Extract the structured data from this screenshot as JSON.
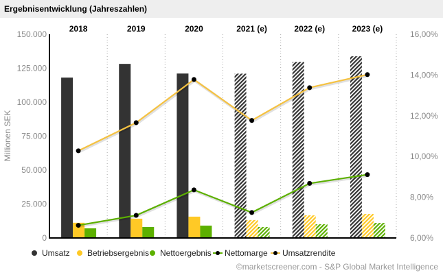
{
  "header": {
    "title": "Ergebnisentwicklung (Jahreszahlen)"
  },
  "footer": {
    "source": "©marketscreener.com - S&P Global Market Intelligence"
  },
  "chart_data": {
    "type": "bar",
    "title": "Ergebnisentwicklung (Jahreszahlen)",
    "categories": [
      "2018",
      "2019",
      "2020",
      "2021 (e)",
      "2022 (e)",
      "2023 (e)"
    ],
    "estimated": [
      false,
      false,
      false,
      true,
      true,
      true
    ],
    "ylabel": "Millionen SEK",
    "ylim": [
      0,
      150000
    ],
    "yticks": [
      "0",
      "25.000",
      "50.000",
      "75.000",
      "100.000",
      "125.000",
      "150.000"
    ],
    "y2lim": [
      6,
      16
    ],
    "y2ticks": [
      "6,00%",
      "8,00%",
      "10,00%",
      "12,00%",
      "14,00%",
      "16,00%"
    ],
    "grid": "vertical dotted separators",
    "legend_position": "bottom",
    "series": [
      {
        "name": "Umsatz",
        "type": "bar",
        "axis": "left",
        "color": "#333333",
        "values": [
          118100,
          128200,
          121100,
          121000,
          129700,
          133800
        ]
      },
      {
        "name": "Betriebsergebnis",
        "type": "bar",
        "axis": "left",
        "color": "#ffc926",
        "values": [
          11200,
          14200,
          15700,
          13200,
          16700,
          17700
        ]
      },
      {
        "name": "Nettoergebnis",
        "type": "bar",
        "axis": "left",
        "color": "#5cb000",
        "values": [
          7100,
          8100,
          9100,
          8100,
          10100,
          11100
        ]
      },
      {
        "name": "Nettomarge",
        "type": "line",
        "axis": "right",
        "color": "#5cb000",
        "values": [
          6.62,
          7.11,
          8.36,
          7.25,
          8.68,
          9.11
        ]
      },
      {
        "name": "Umsatzrendite",
        "type": "line",
        "axis": "right",
        "color": "#f5c242",
        "values": [
          10.28,
          11.66,
          13.78,
          11.77,
          13.38,
          14.02
        ]
      }
    ]
  }
}
